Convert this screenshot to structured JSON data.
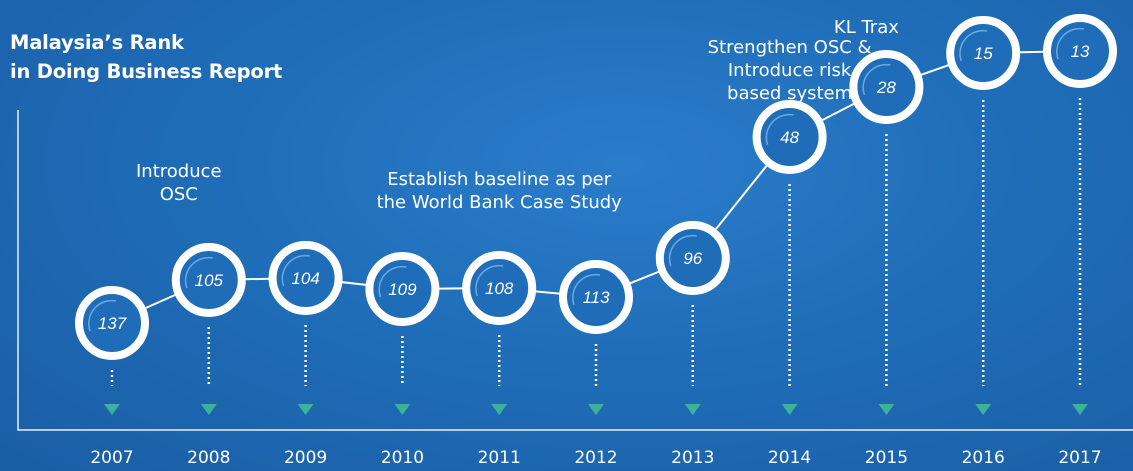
{
  "title": [
    "Malaysia’s Rank",
    "in Doing Business Report"
  ],
  "annotations": [
    {
      "year": "2008",
      "lines": [
        "Introduce",
        "OSC"
      ]
    },
    {
      "year": "2011",
      "lines": [
        "Establish baseline as per",
        "the World Bank Case Study"
      ]
    },
    {
      "year": "2014",
      "lines": [
        "Strengthen OSC &",
        "Introduce risk",
        "based system"
      ]
    },
    {
      "year": "2015",
      "lines": [
        "KL Trax"
      ]
    }
  ],
  "colors": {
    "background": "#1f6db8",
    "line": "#ffffff",
    "marker_ring": "#ffffff",
    "marker_fill": "#1f6db8",
    "arrow": "#3bb39a"
  },
  "chart_data": {
    "type": "line",
    "title": "Malaysia’s Rank in Doing Business Report",
    "xlabel": "",
    "ylabel": "",
    "categories": [
      "2007",
      "2008",
      "2009",
      "2010",
      "2011",
      "2012",
      "2013",
      "2014",
      "2015",
      "2016",
      "2017"
    ],
    "series": [
      {
        "values": [
          137,
          105,
          104,
          109,
          108,
          113,
          96,
          48,
          28,
          15,
          13
        ]
      }
    ],
    "grid": false,
    "legend": "none"
  }
}
